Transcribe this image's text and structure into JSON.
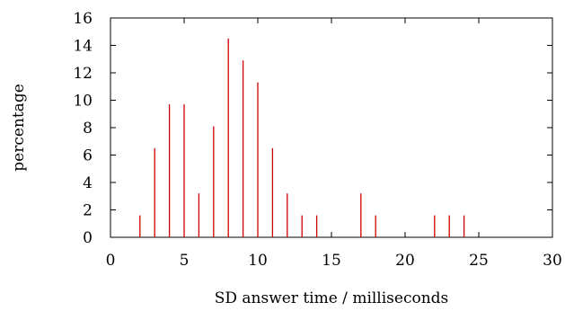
{
  "chart_data": {
    "type": "bar",
    "title": "",
    "xlabel": "SD answer time / milliseconds",
    "ylabel": "percentage",
    "xlim": [
      0,
      30
    ],
    "ylim": [
      0,
      16
    ],
    "x_ticks": [
      0,
      5,
      10,
      15,
      20,
      25,
      30
    ],
    "y_ticks": [
      0,
      2,
      4,
      6,
      8,
      10,
      12,
      14,
      16
    ],
    "grid": false,
    "bar_color": "#cc0000",
    "series": [
      {
        "x": [
          2,
          3,
          4,
          5,
          6,
          7,
          8,
          9,
          10,
          11,
          12,
          13,
          14,
          17,
          18,
          22,
          23,
          24
        ],
        "values": [
          1.6,
          6.5,
          9.7,
          9.7,
          3.2,
          8.1,
          14.5,
          12.9,
          11.3,
          6.5,
          3.2,
          1.6,
          1.6,
          3.2,
          1.6,
          1.6,
          1.6,
          1.6
        ]
      }
    ]
  }
}
